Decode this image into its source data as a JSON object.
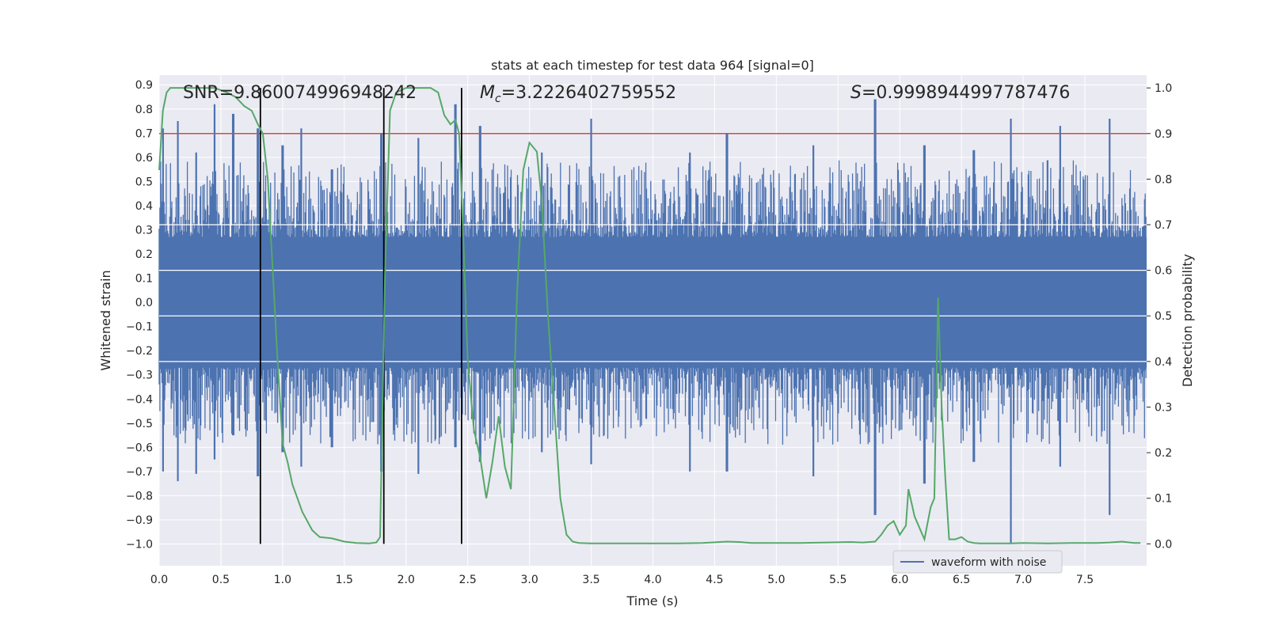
{
  "chart_data": {
    "type": "line",
    "title": "stats at each timestep for test data 964 [signal=0]",
    "xlabel": "Time (s)",
    "ylabel_left": "Whitened strain",
    "ylabel_right": "Detection probability",
    "xlim": [
      0.0,
      8.0
    ],
    "ylim_left": [
      -1.09,
      0.94
    ],
    "ylim_right": [
      -0.048,
      1.028
    ],
    "x_ticks": [
      "0.0",
      "0.5",
      "1.0",
      "1.5",
      "2.0",
      "2.5",
      "3.0",
      "3.5",
      "4.0",
      "4.5",
      "5.0",
      "5.5",
      "6.0",
      "6.5",
      "7.0",
      "7.5"
    ],
    "left_ticks": [
      "0.9",
      "0.8",
      "0.7",
      "0.6",
      "0.5",
      "0.4",
      "0.3",
      "0.2",
      "0.1",
      "0.0",
      "-0.1",
      "-0.2",
      "-0.3",
      "-0.4",
      "-0.5",
      "-0.6",
      "-0.7",
      "-0.8",
      "-0.9",
      "-1.0"
    ],
    "right_ticks": [
      "1.0",
      "0.9",
      "0.8",
      "0.7",
      "0.6",
      "0.5",
      "0.4",
      "0.3",
      "0.2",
      "0.1",
      "0.0"
    ],
    "grid": true,
    "legend_position": "lower-right",
    "annotations": {
      "snr": "SNR=9.860074996948242",
      "mc_symbol": "M",
      "mc_sub": "c",
      "mc_value": "=3.2226402759552",
      "s_symbol": "S",
      "s_value": "=0.9998944997787476"
    },
    "threshold": {
      "value": 0.9,
      "axis": "right",
      "color": "#c44e52"
    },
    "vertical_markers": [
      0.82,
      1.82,
      2.45
    ],
    "series": [
      {
        "name": "waveform with noise",
        "axis": "left",
        "color": "#4c72b0",
        "style": "dense-noise",
        "core_amplitude": 0.27,
        "peaks": [
          [
            0.03,
            0.72,
            -0.7
          ],
          [
            0.15,
            0.75,
            -0.74
          ],
          [
            0.3,
            0.62,
            -0.71
          ],
          [
            0.45,
            0.82,
            -0.65
          ],
          [
            0.6,
            0.78,
            -0.55
          ],
          [
            0.8,
            0.72,
            -0.72
          ],
          [
            1.0,
            0.65,
            -0.62
          ],
          [
            1.15,
            0.72,
            -0.68
          ],
          [
            1.4,
            0.55,
            -0.6
          ],
          [
            1.8,
            0.7,
            -0.7
          ],
          [
            2.1,
            0.68,
            -0.71
          ],
          [
            2.4,
            0.82,
            -0.6
          ],
          [
            2.6,
            0.73,
            -0.66
          ],
          [
            3.1,
            0.62,
            -0.62
          ],
          [
            3.5,
            0.76,
            -0.67
          ],
          [
            4.3,
            0.62,
            -0.7
          ],
          [
            4.6,
            0.7,
            -0.7
          ],
          [
            5.3,
            0.65,
            -0.72
          ],
          [
            5.8,
            0.84,
            -0.88
          ],
          [
            6.2,
            0.65,
            -0.75
          ],
          [
            6.6,
            0.63,
            -0.66
          ],
          [
            6.9,
            0.76,
            -1.0
          ],
          [
            7.3,
            0.73,
            -0.68
          ],
          [
            7.7,
            0.76,
            -0.88
          ]
        ]
      },
      {
        "name": "",
        "axis": "right",
        "color": "#55a868",
        "x": [
          0.0,
          0.03,
          0.06,
          0.09,
          0.15,
          0.25,
          0.35,
          0.45,
          0.55,
          0.62,
          0.69,
          0.75,
          0.8,
          0.84,
          0.88,
          0.92,
          0.96,
          1.0,
          1.04,
          1.08,
          1.12,
          1.16,
          1.2,
          1.24,
          1.3,
          1.4,
          1.5,
          1.6,
          1.7,
          1.76,
          1.79,
          1.83,
          1.87,
          1.92,
          2.0,
          2.1,
          2.2,
          2.26,
          2.31,
          2.36,
          2.4,
          2.43,
          2.46,
          2.5,
          2.55,
          2.6,
          2.65,
          2.7,
          2.75,
          2.8,
          2.85,
          2.9,
          2.95,
          3.0,
          3.06,
          3.1,
          3.15,
          3.2,
          3.25,
          3.3,
          3.35,
          3.4,
          3.5,
          3.6,
          3.8,
          4.0,
          4.2,
          4.4,
          4.6,
          4.7,
          4.8,
          5.0,
          5.2,
          5.4,
          5.6,
          5.7,
          5.8,
          5.85,
          5.9,
          5.95,
          6.0,
          6.05,
          6.07,
          6.12,
          6.2,
          6.25,
          6.28,
          6.31,
          6.34,
          6.37,
          6.4,
          6.45,
          6.5,
          6.55,
          6.6,
          6.65,
          6.7,
          6.8,
          6.9,
          7.0,
          7.2,
          7.4,
          7.6,
          7.7,
          7.8,
          7.9,
          7.95
        ],
        "y": [
          0.82,
          0.95,
          0.99,
          1.0,
          1.0,
          1.0,
          1.0,
          1.0,
          0.99,
          0.98,
          0.96,
          0.95,
          0.92,
          0.9,
          0.8,
          0.6,
          0.4,
          0.22,
          0.18,
          0.13,
          0.1,
          0.07,
          0.05,
          0.03,
          0.015,
          0.012,
          0.005,
          0.002,
          0.001,
          0.003,
          0.015,
          0.6,
          0.95,
          0.99,
          1.0,
          1.0,
          1.0,
          0.99,
          0.94,
          0.92,
          0.93,
          0.9,
          0.7,
          0.4,
          0.25,
          0.19,
          0.1,
          0.18,
          0.28,
          0.17,
          0.12,
          0.55,
          0.82,
          0.88,
          0.86,
          0.75,
          0.5,
          0.3,
          0.1,
          0.02,
          0.005,
          0.002,
          0.001,
          0.001,
          0.001,
          0.001,
          0.001,
          0.002,
          0.005,
          0.004,
          0.002,
          0.002,
          0.002,
          0.003,
          0.004,
          0.003,
          0.005,
          0.02,
          0.04,
          0.05,
          0.02,
          0.04,
          0.12,
          0.06,
          0.01,
          0.08,
          0.1,
          0.54,
          0.3,
          0.14,
          0.01,
          0.01,
          0.015,
          0.005,
          0.002,
          0.001,
          0.001,
          0.001,
          0.001,
          0.002,
          0.001,
          0.002,
          0.002,
          0.003,
          0.005,
          0.002,
          0.002
        ]
      }
    ],
    "colors": {
      "background": "#eaeaf2",
      "grid": "#ffffff",
      "marker": "#000000"
    }
  }
}
